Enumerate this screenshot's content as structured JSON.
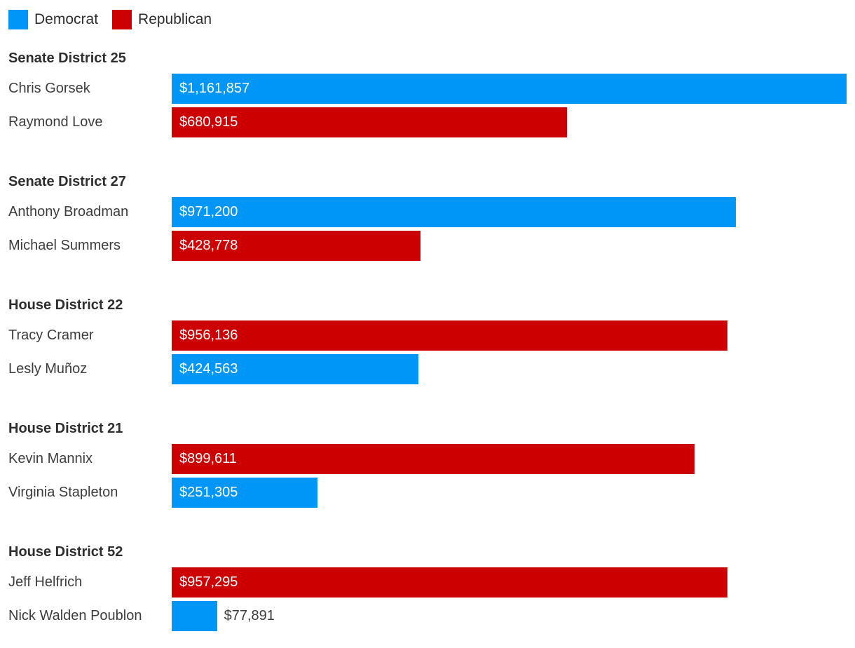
{
  "colors": {
    "democrat": "#0096f8",
    "republican": "#cc0000",
    "header_text": "#2e2e2e",
    "name_text": "#3d3d3d",
    "bar_label_inside": "#ffffff",
    "background": "#ffffff"
  },
  "legend": {
    "items": [
      {
        "label": "Democrat",
        "party": "democrat"
      },
      {
        "label": "Republican",
        "party": "republican"
      }
    ]
  },
  "chart_data": {
    "type": "bar",
    "orientation": "horizontal",
    "value_format": "USD",
    "legend_position": "top-left",
    "axes_shown": false,
    "max_value": 1161857,
    "groups": [
      {
        "district": "Senate District 25",
        "candidates": [
          {
            "name": "Chris Gorsek",
            "party": "democrat",
            "value": 1161857,
            "value_label": "$1,161,857"
          },
          {
            "name": "Raymond Love",
            "party": "republican",
            "value": 680915,
            "value_label": "$680,915"
          }
        ]
      },
      {
        "district": "Senate District 27",
        "candidates": [
          {
            "name": "Anthony Broadman",
            "party": "democrat",
            "value": 971200,
            "value_label": "$971,200"
          },
          {
            "name": "Michael Summers",
            "party": "republican",
            "value": 428778,
            "value_label": "$428,778"
          }
        ]
      },
      {
        "district": "House District 22",
        "candidates": [
          {
            "name": "Tracy Cramer",
            "party": "republican",
            "value": 956136,
            "value_label": "$956,136"
          },
          {
            "name": "Lesly Muñoz",
            "party": "democrat",
            "value": 424563,
            "value_label": "$424,563"
          }
        ]
      },
      {
        "district": "House District 21",
        "candidates": [
          {
            "name": "Kevin Mannix",
            "party": "republican",
            "value": 899611,
            "value_label": "$899,611"
          },
          {
            "name": "Virginia Stapleton",
            "party": "democrat",
            "value": 251305,
            "value_label": "$251,305"
          }
        ]
      },
      {
        "district": "House District 52",
        "candidates": [
          {
            "name": "Jeff Helfrich",
            "party": "republican",
            "value": 957295,
            "value_label": "$957,295"
          },
          {
            "name": "Nick Walden Poublon",
            "party": "democrat",
            "value": 77891,
            "value_label": "$77,891"
          }
        ]
      }
    ]
  }
}
